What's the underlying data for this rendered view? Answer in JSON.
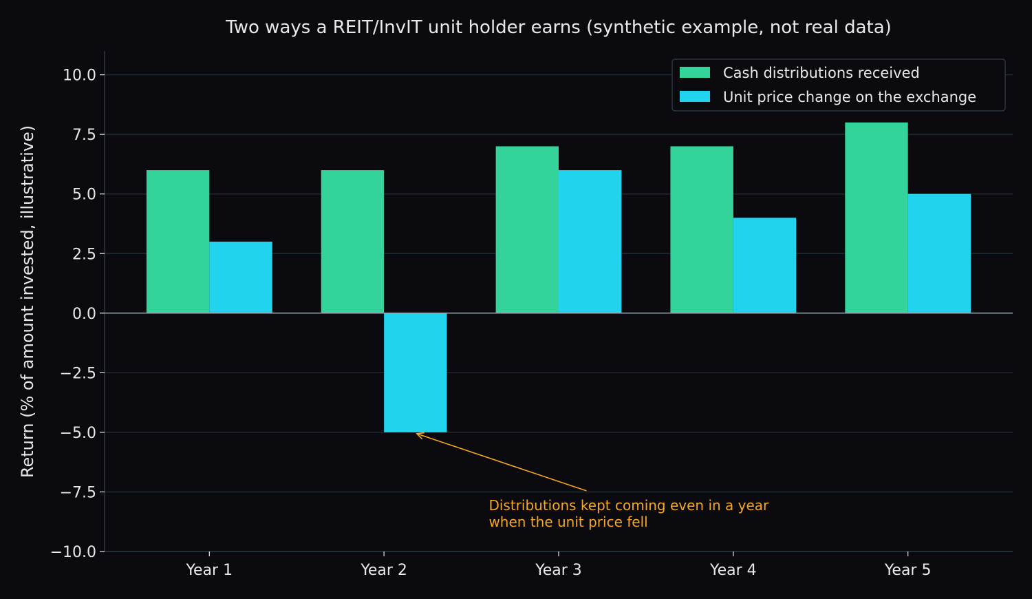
{
  "chart_data": {
    "type": "bar",
    "title": "Two ways a REIT/InvIT unit holder earns (synthetic example, not real data)",
    "xlabel": "",
    "ylabel": "Return (% of amount invested, illustrative)",
    "categories": [
      "Year 1",
      "Year 2",
      "Year 3",
      "Year 4",
      "Year 5"
    ],
    "series": [
      {
        "name": "Cash distributions received",
        "values": [
          6,
          6,
          7,
          7,
          8
        ],
        "color": "#34d399"
      },
      {
        "name": "Unit price change on the exchange",
        "values": [
          3,
          -5,
          6,
          4,
          5
        ],
        "color": "#22d3ee"
      }
    ],
    "ylim": [
      -10,
      11
    ],
    "yticks": [
      -10.0,
      -7.5,
      -5.0,
      -2.5,
      0.0,
      2.5,
      5.0,
      7.5,
      10.0
    ],
    "ytick_labels": [
      "−10.0",
      "−7.5",
      "−5.0",
      "−2.5",
      "0.0",
      "2.5",
      "5.0",
      "7.5",
      "10.0"
    ],
    "grid": true,
    "legend_position": "top-right",
    "annotation": {
      "lines": [
        "Distributions kept coming even in a year",
        "when the unit price fell"
      ],
      "target_category": "Year 2",
      "target_series": "Unit price change on the exchange",
      "target_value": -5,
      "text_category_position": 1.6,
      "text_value": -7.8,
      "color": "#f5a623"
    },
    "colors": {
      "background": "#0b0b0f",
      "grid": "#1e2a33",
      "axis": "#2a3440",
      "zero_line": "#9aa4ae",
      "text": "#e8e8ec"
    }
  }
}
